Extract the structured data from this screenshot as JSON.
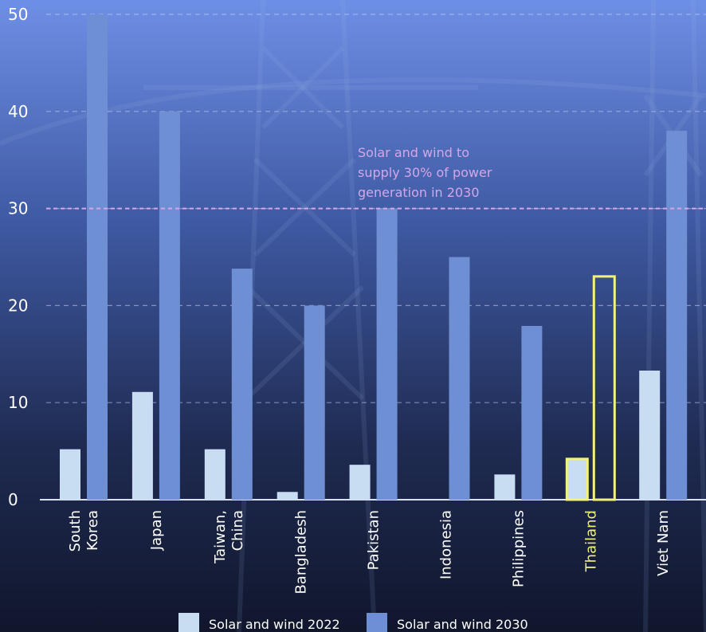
{
  "chart_data": {
    "type": "bar",
    "categories": [
      [
        "South",
        "Korea"
      ],
      [
        "Japan"
      ],
      [
        "Taiwan,",
        "China"
      ],
      [
        "Bangladesh"
      ],
      [
        "Pakistan"
      ],
      [
        "Indonesia"
      ],
      [
        "Philippines"
      ],
      [
        "Thailand"
      ],
      [
        "Viet Nam"
      ]
    ],
    "series": [
      {
        "name": "Solar and wind 2022",
        "color": "#c8dcf2",
        "values": [
          5.2,
          11.1,
          5.2,
          0.8,
          3.6,
          0,
          2.6,
          4.2,
          13.3
        ]
      },
      {
        "name": "Solar and wind 2030",
        "color": "#6e8fd3",
        "values": [
          50,
          40,
          23.8,
          20,
          30,
          25,
          17.9,
          23,
          38
        ]
      }
    ],
    "ylim": [
      0,
      50
    ],
    "yticks": [
      "0",
      "10",
      "20",
      "30",
      "40",
      "50"
    ],
    "grid": true,
    "highlight": {
      "category_index": 7,
      "color": "#f2f27a"
    },
    "reference_line": {
      "value": 30,
      "color": "#d6a6e6"
    },
    "annotation": {
      "lines": [
        "Solar and wind to",
        "supply 30% of power",
        "generation in 2030"
      ]
    },
    "legend_position": "bottom"
  }
}
